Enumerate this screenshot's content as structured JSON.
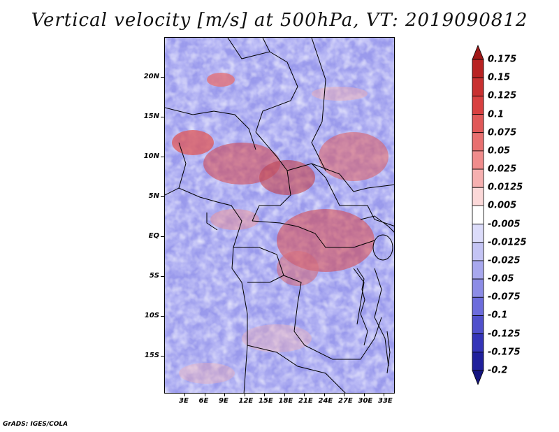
{
  "title": "Vertical velocity [m/s] at 500hPa, VT: 2019090812",
  "credit": "GrADS: IGES/COLA",
  "axes": {
    "lat_labels": [
      "20N",
      "15N",
      "10N",
      "5N",
      "EQ",
      "5S",
      "10S",
      "15S"
    ],
    "lon_labels": [
      "3E",
      "6E",
      "9E",
      "12E",
      "15E",
      "18E",
      "21E",
      "24E",
      "27E",
      "30E",
      "33E"
    ]
  },
  "colorbar": {
    "labels": [
      "0.175",
      "0.15",
      "0.125",
      "0.1",
      "0.075",
      "0.05",
      "0.025",
      "0.0125",
      "0.005",
      "-0.005",
      "-0.0125",
      "-0.025",
      "-0.05",
      "-0.075",
      "-0.1",
      "-0.125",
      "-0.175",
      "-0.2"
    ],
    "colors": [
      "#a01818",
      "#b82222",
      "#c83030",
      "#d84040",
      "#e05858",
      "#e87070",
      "#f08c8c",
      "#f6b0b0",
      "#fbd8d8",
      "#ffffff",
      "#dcdcfa",
      "#c4c4f4",
      "#a8a8ee",
      "#8c8ce6",
      "#6c6cdc",
      "#5050cc",
      "#3434b8",
      "#20209c",
      "#141480"
    ]
  }
}
